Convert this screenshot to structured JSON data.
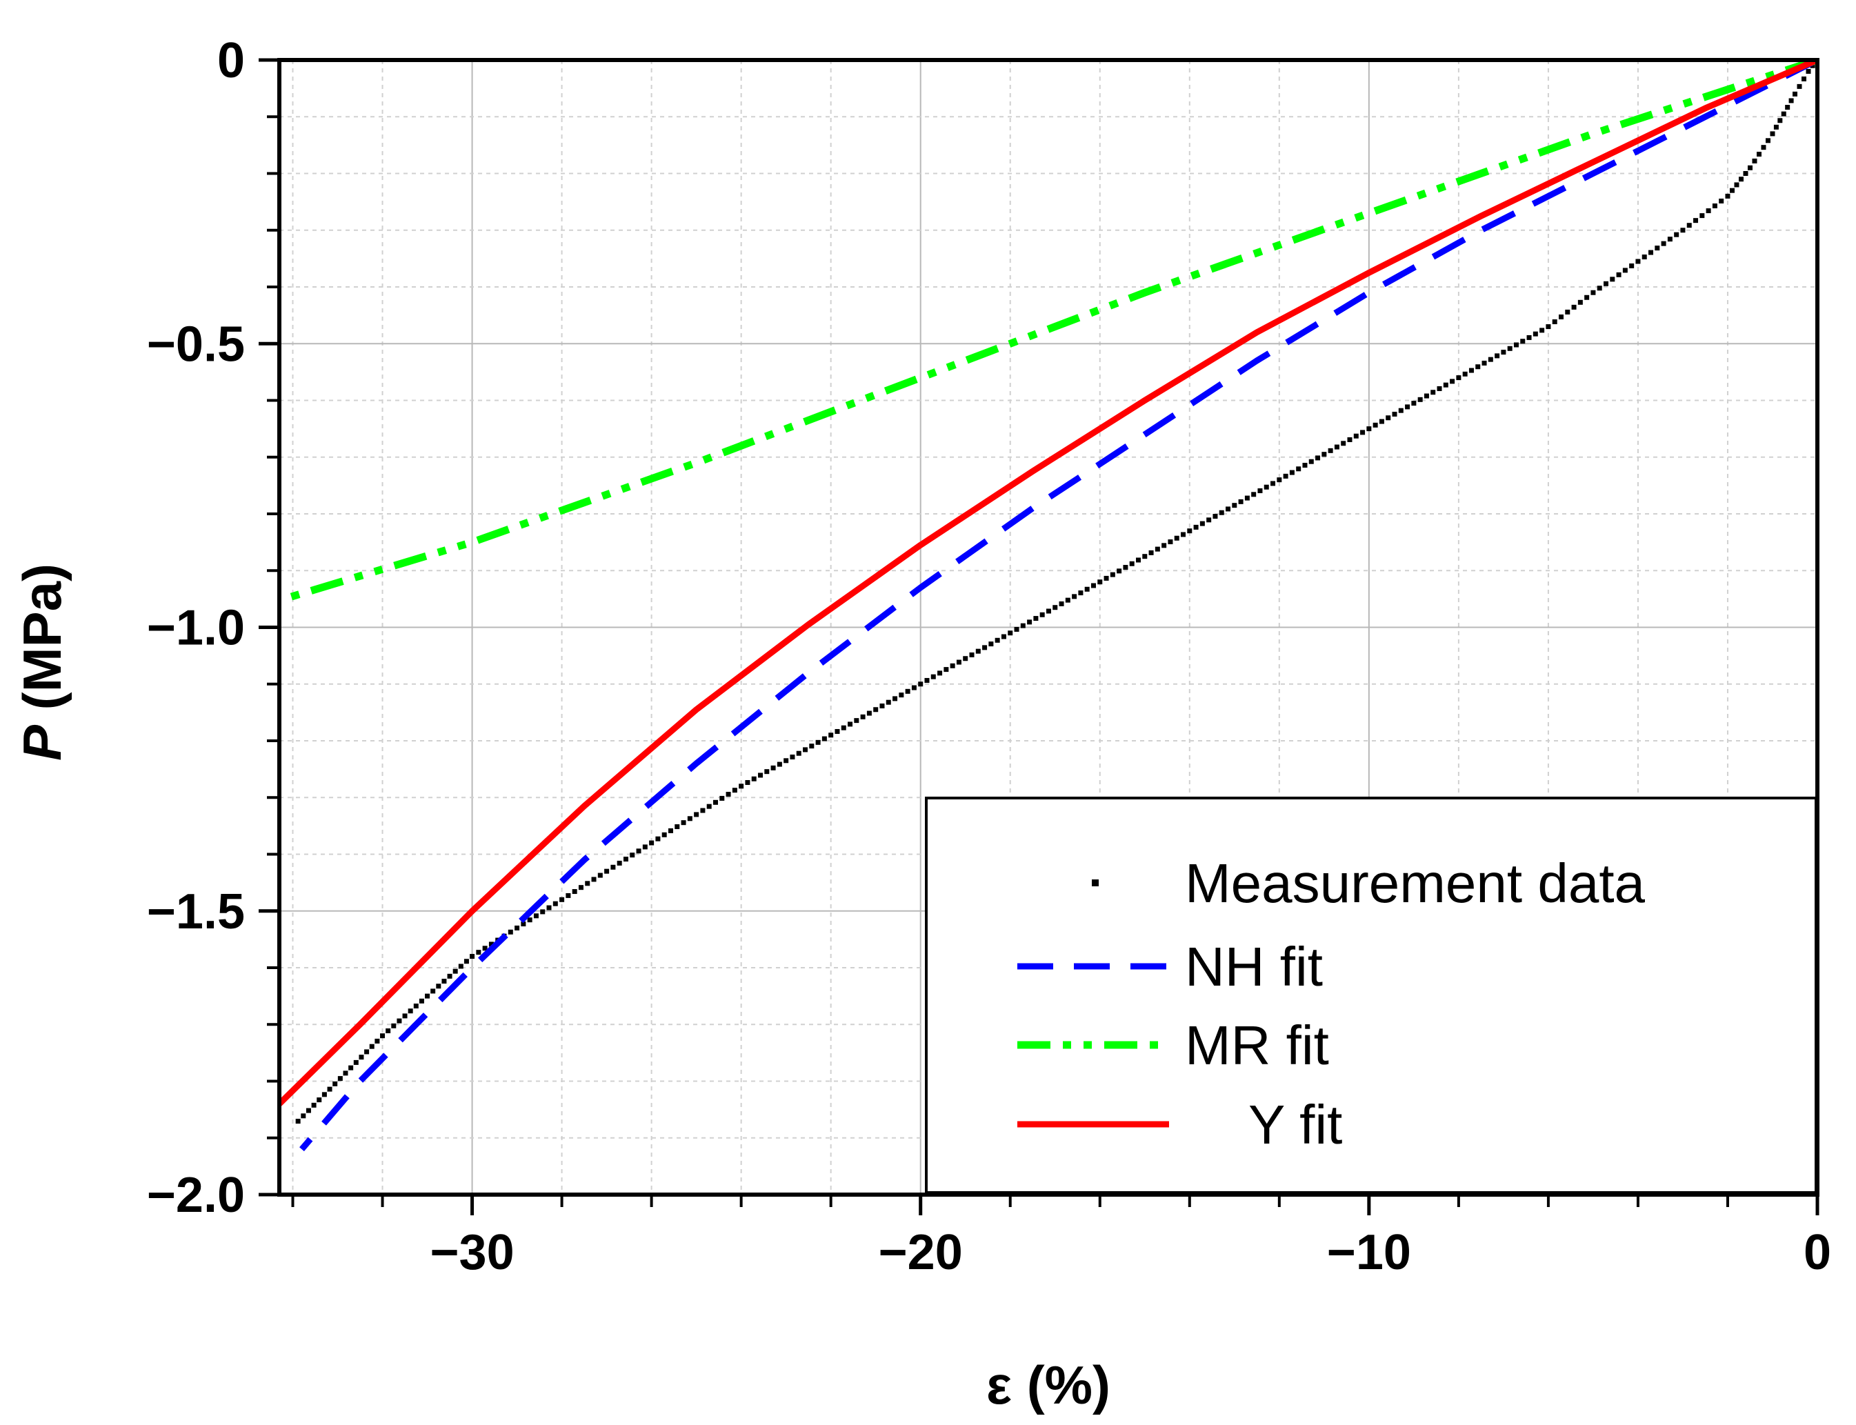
{
  "chart_data": {
    "type": "line",
    "title": "",
    "xlabel": "ε (%)",
    "ylabel_italic": "P",
    "ylabel_rest": " (MPa)",
    "xlim": [
      -34.3,
      0
    ],
    "ylim": [
      -2.0,
      0
    ],
    "x_ticks": [
      -30,
      -20,
      -10,
      0
    ],
    "x_tick_labels": [
      "−30",
      "−20",
      "−10",
      "0"
    ],
    "x_minor_step": 2,
    "y_ticks": [
      0,
      -0.5,
      -1.0,
      -1.5,
      -2.0
    ],
    "y_tick_labels": [
      "0",
      "−0.5",
      "−1.0",
      "−1.5",
      "−2.0"
    ],
    "y_minor_step": 0.1,
    "grid": true,
    "legend_position": "bottom-right",
    "series": [
      {
        "name": "Measurement data",
        "style": "dotted",
        "color": "#000000",
        "x": [
          -0.01,
          -0.2,
          -0.5,
          -1.0,
          -1.5,
          -2.0,
          -3.0,
          -4.0,
          -5.0,
          -6.0,
          -8.0,
          -10.0,
          -12.0,
          -14.0,
          -16.0,
          -18.0,
          -20.0,
          -22.0,
          -24.0,
          -26.0,
          -28.0,
          -30.0,
          -32.0,
          -34.0
        ],
        "y": [
          0,
          -0.02,
          -0.06,
          -0.13,
          -0.19,
          -0.24,
          -0.3,
          -0.355,
          -0.41,
          -0.47,
          -0.56,
          -0.65,
          -0.74,
          -0.83,
          -0.92,
          -1.01,
          -1.1,
          -1.19,
          -1.28,
          -1.38,
          -1.48,
          -1.58,
          -1.72,
          -1.88
        ]
      },
      {
        "name": "NH fit",
        "style": "dashed",
        "color": "#0000ff",
        "x": [
          0,
          -2.5,
          -5.0,
          -7.5,
          -10.0,
          -12.5,
          -15.0,
          -17.5,
          -20.0,
          -22.5,
          -25.0,
          -27.5,
          -30.0,
          -32.5,
          -33.8
        ],
        "y": [
          0,
          -0.1,
          -0.2,
          -0.3,
          -0.41,
          -0.53,
          -0.66,
          -0.79,
          -0.93,
          -1.08,
          -1.24,
          -1.41,
          -1.6,
          -1.8,
          -1.92
        ]
      },
      {
        "name": "MR fit",
        "style": "dash-dot-dot",
        "color": "#00ff00",
        "x": [
          0,
          -5.0,
          -10.0,
          -15.0,
          -20.0,
          -25.0,
          -30.0,
          -34.2
        ],
        "y": [
          0,
          -0.13,
          -0.27,
          -0.41,
          -0.56,
          -0.71,
          -0.85,
          -0.95
        ]
      },
      {
        "name": "Y fit",
        "style": "solid",
        "color": "#ff0000",
        "x": [
          0,
          -2.5,
          -5.0,
          -7.5,
          -10.0,
          -12.5,
          -15.0,
          -17.5,
          -20.0,
          -22.5,
          -25.0,
          -27.5,
          -30.0,
          -32.5,
          -34.3
        ],
        "y": [
          0,
          -0.085,
          -0.18,
          -0.275,
          -0.375,
          -0.48,
          -0.6,
          -0.725,
          -0.855,
          -0.995,
          -1.145,
          -1.315,
          -1.5,
          -1.7,
          -1.84
        ]
      }
    ]
  }
}
